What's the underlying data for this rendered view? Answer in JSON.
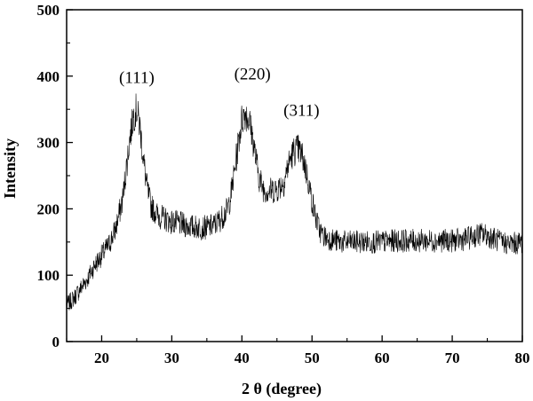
{
  "chart_data": {
    "type": "line",
    "title": "",
    "xlabel": "2 θ (degree)",
    "ylabel": "Intensity",
    "xlim": [
      15,
      80
    ],
    "ylim": [
      0,
      500
    ],
    "x_ticks": [
      20,
      30,
      40,
      50,
      60,
      70,
      80
    ],
    "y_ticks": [
      0,
      100,
      200,
      300,
      400,
      500
    ],
    "grid": false,
    "legend": "none",
    "line_color": "#000000",
    "series": [
      {
        "x": [
          15,
          16,
          17,
          18,
          19,
          20,
          21,
          22,
          23,
          23.5,
          24,
          24.5,
          25,
          25.5,
          26,
          26.5,
          27,
          28,
          29,
          30,
          31,
          32,
          33,
          34,
          35,
          36,
          37,
          38,
          38.5,
          39,
          39.5,
          40,
          40.5,
          41,
          41.5,
          42,
          42.5,
          43,
          43.5,
          44,
          45,
          46,
          46.5,
          47,
          47.5,
          48,
          48.5,
          49,
          49.5,
          50,
          50.5,
          51,
          51.5,
          52,
          53,
          54,
          55,
          56,
          57,
          58,
          59,
          60,
          61,
          62,
          63,
          64,
          65,
          66,
          67,
          68,
          69,
          70,
          71,
          72,
          73,
          74,
          75,
          76,
          77,
          78,
          79,
          80
        ],
        "values": [
          55,
          65,
          80,
          95,
          115,
          130,
          145,
          170,
          215,
          260,
          305,
          340,
          350,
          320,
          270,
          230,
          205,
          190,
          185,
          180,
          178,
          175,
          173,
          172,
          172,
          175,
          185,
          200,
          225,
          260,
          300,
          335,
          345,
          335,
          310,
          275,
          245,
          232,
          228,
          227,
          230,
          240,
          262,
          278,
          288,
          290,
          282,
          265,
          240,
          212,
          188,
          170,
          160,
          157,
          153,
          150,
          150,
          150,
          150,
          150,
          150,
          150,
          151,
          152,
          152,
          152,
          152,
          152,
          152,
          152,
          152,
          152,
          153,
          155,
          158,
          162,
          160,
          155,
          150,
          148,
          148,
          150
        ]
      }
    ],
    "annotations": [
      {
        "text": "(111)",
        "x": 25,
        "y": 390
      },
      {
        "text": "(220)",
        "x": 41.5,
        "y": 395
      },
      {
        "text": "(311)",
        "x": 48.5,
        "y": 340
      }
    ]
  }
}
